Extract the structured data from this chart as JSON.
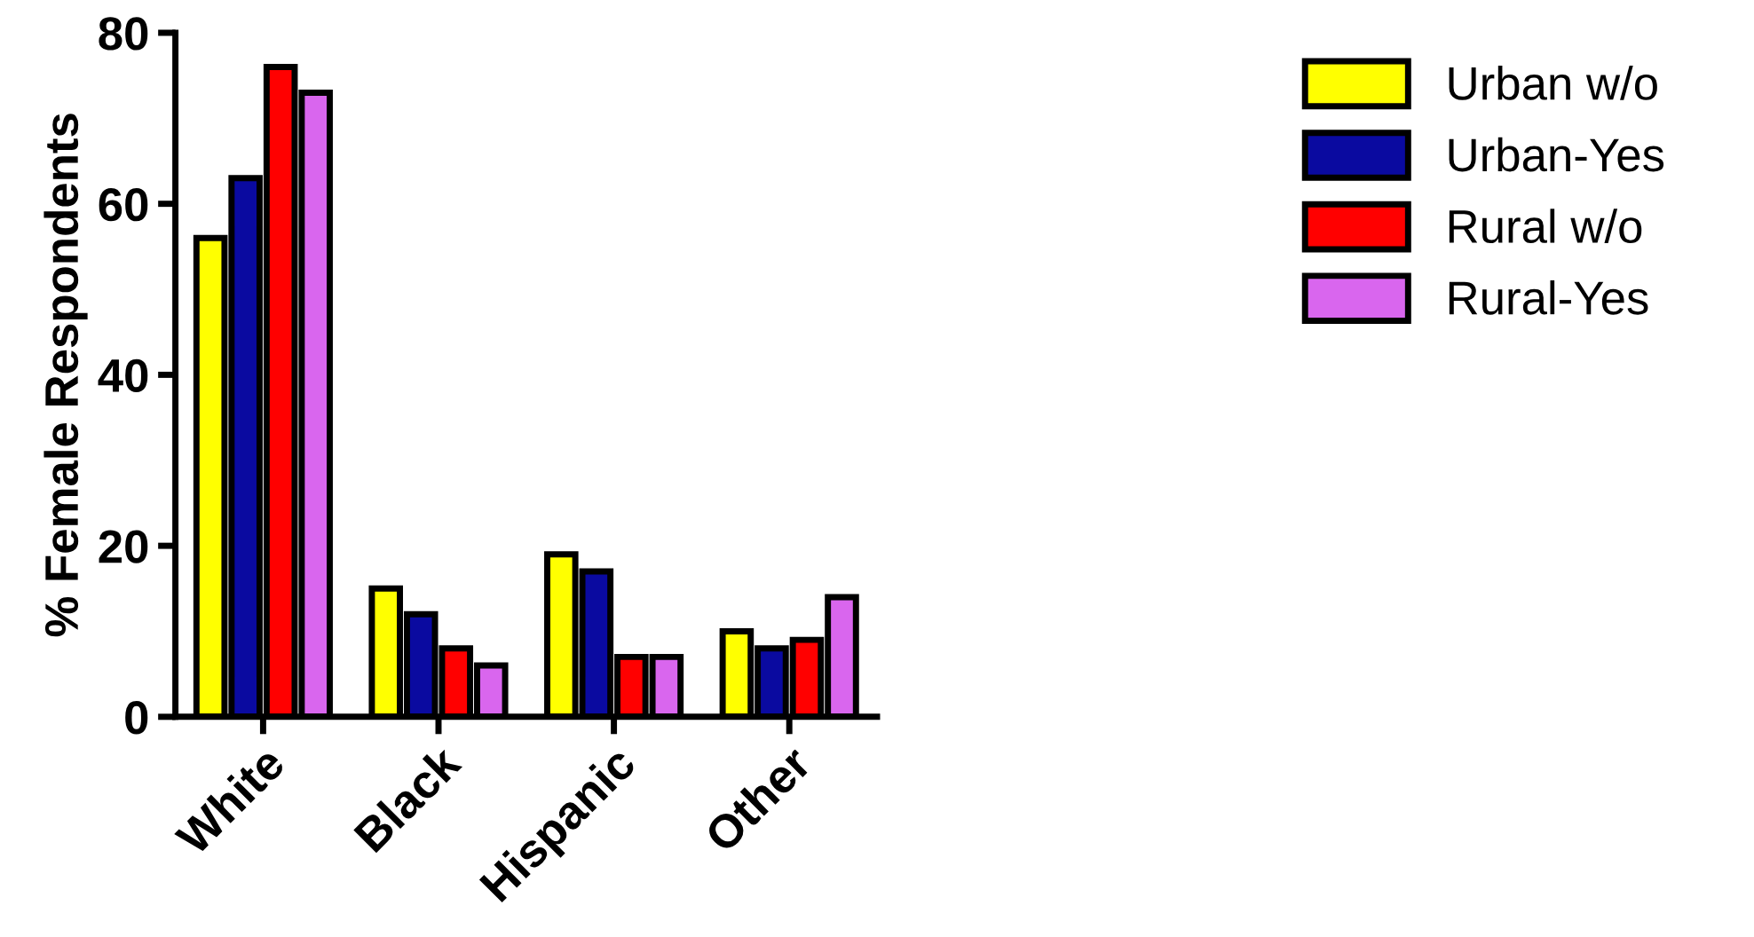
{
  "chart_data": {
    "type": "bar",
    "ylabel": "% Female Respondents",
    "categories": [
      "White",
      "Black",
      "Hispanic",
      "Other"
    ],
    "series": [
      {
        "name": "Urban w/o",
        "color": "#ffff00",
        "values": [
          56,
          15,
          19,
          10
        ]
      },
      {
        "name": "Urban-Yes",
        "color": "#0a0aa0",
        "values": [
          63,
          12,
          17,
          8
        ]
      },
      {
        "name": "Rural w/o",
        "color": "#ff0000",
        "values": [
          76,
          8,
          7,
          9
        ]
      },
      {
        "name": "Rural-Yes",
        "color": "#d966ee",
        "values": [
          73,
          6,
          7,
          14
        ]
      }
    ],
    "ylim": [
      0,
      80
    ],
    "yticks": [
      0,
      20,
      40,
      60,
      80
    ],
    "grid": false,
    "legend": "right"
  }
}
